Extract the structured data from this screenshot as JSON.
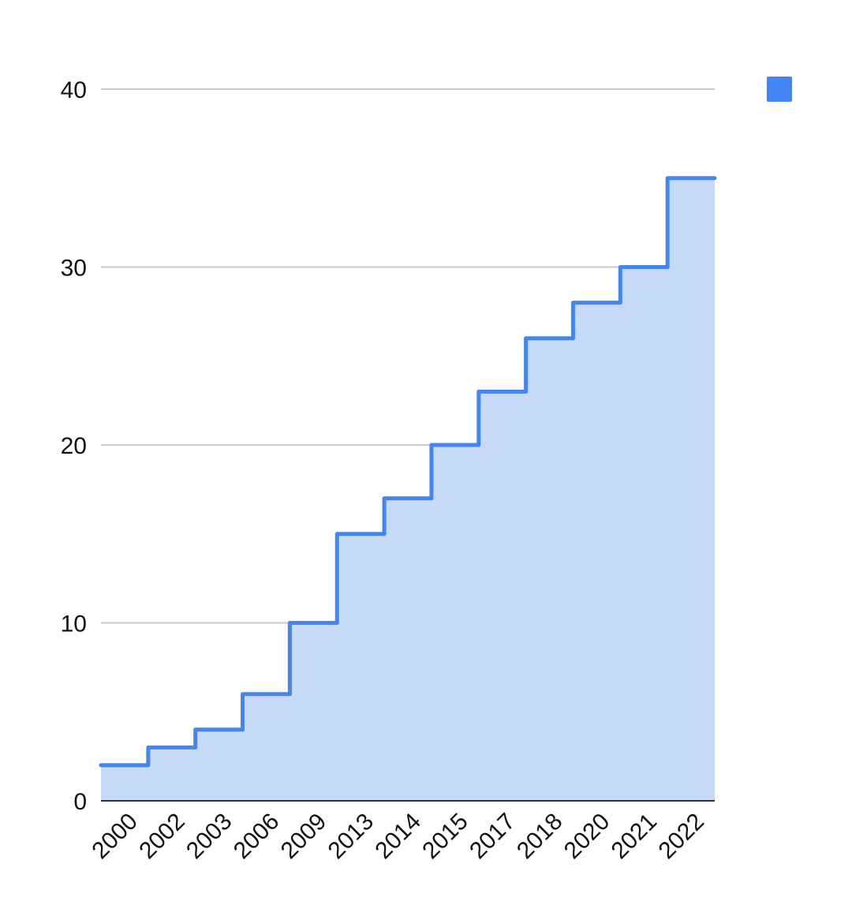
{
  "chart_data": {
    "type": "area",
    "step": true,
    "categories": [
      "2000",
      "2002",
      "2003",
      "2006",
      "2009",
      "2013",
      "2014",
      "2015",
      "2017",
      "2018",
      "2020",
      "2021",
      "2022"
    ],
    "series": [
      {
        "values": [
          2,
          3,
          4,
          6,
          10,
          15,
          17,
          20,
          23,
          26,
          28,
          30,
          35
        ],
        "color": "#4285f4",
        "fill": "#c6daf8"
      }
    ],
    "ylim": [
      0,
      40
    ],
    "yticks": [
      "0",
      "10",
      "20",
      "30",
      "40"
    ],
    "grid": true,
    "legend": "top-right",
    "title": "",
    "xlabel": "",
    "ylabel": ""
  }
}
